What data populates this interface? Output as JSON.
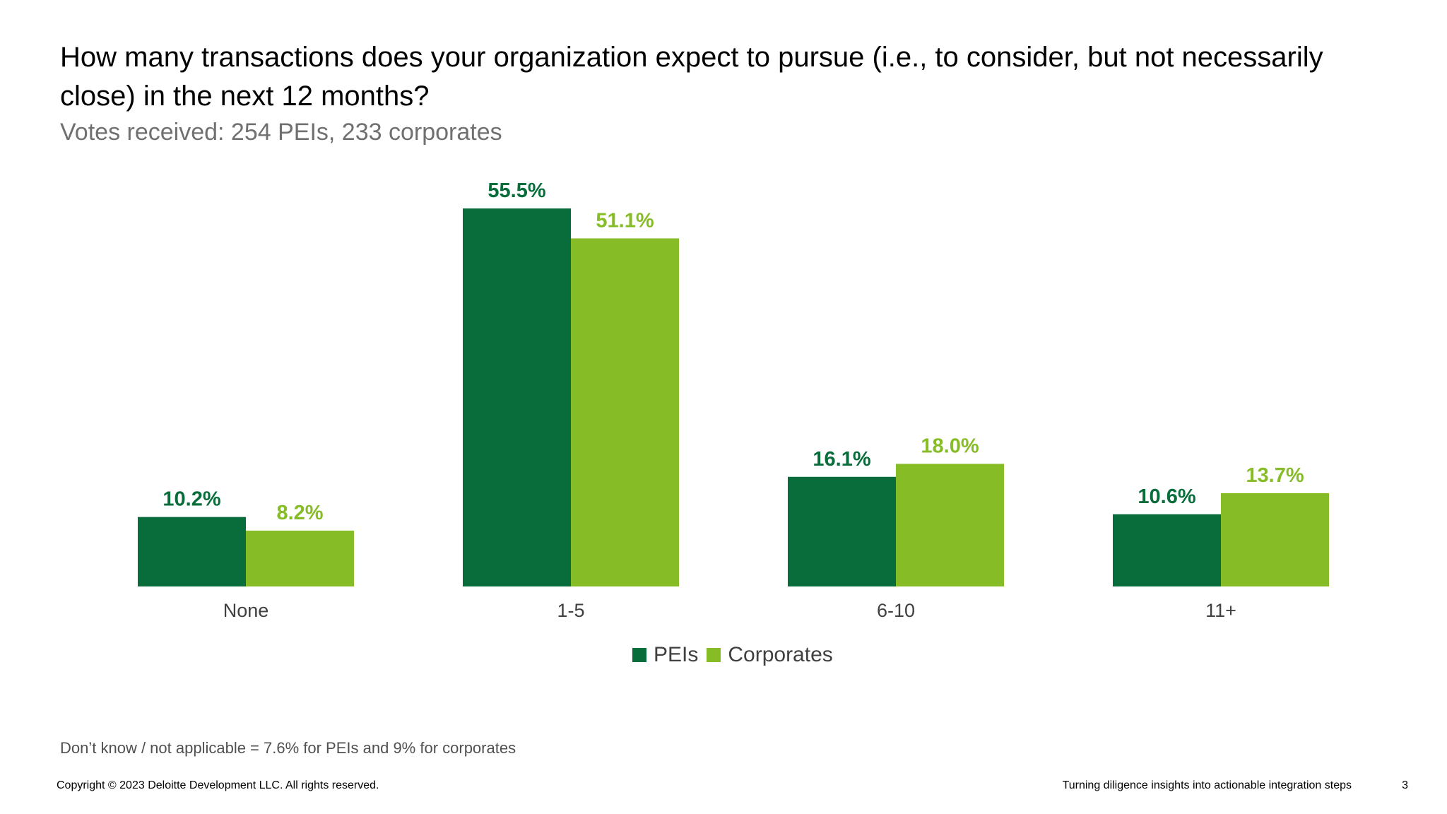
{
  "slide": {
    "title": "How many transactions does your organization expect to pursue (i.e., to consider, but not necessarily close) in the next 12 months?",
    "subtitle": "Votes received: 254 PEIs, 233 corporates",
    "footnote": "Don’t know / not applicable = 7.6% for PEIs and 9% for corporates",
    "copyright": "Copyright © 2023 Deloitte Development LLC. All rights reserved.",
    "footer_title": "Turning diligence insights into actionable integration steps",
    "page_number": "3"
  },
  "chart_data": {
    "type": "bar",
    "categories": [
      "None",
      "1-5",
      "6-10",
      "11+"
    ],
    "series": [
      {
        "name": "PEIs",
        "values": [
          10.2,
          55.5,
          16.1,
          10.6
        ],
        "labels": [
          "10.2%",
          "55.5%",
          "16.1%",
          "10.6%"
        ],
        "color": "#086D3B"
      },
      {
        "name": "Corporates",
        "values": [
          8.2,
          51.1,
          18.0,
          13.7
        ],
        "labels": [
          "8.2%",
          "51.1%",
          "18.0%",
          "13.7%"
        ],
        "color": "#86BC25"
      }
    ],
    "ylim": [
      0,
      55.5
    ],
    "legend": "bottom",
    "grid": false,
    "xlabel": "",
    "ylabel": ""
  }
}
